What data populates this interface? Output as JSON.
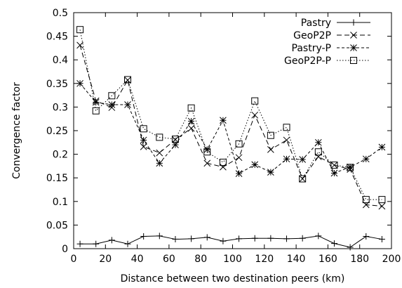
{
  "chart_data": {
    "type": "line",
    "xlabel": "Distance between two destination peers (km)",
    "ylabel": "Convergence factor",
    "xlim": [
      0,
      200
    ],
    "ylim": [
      0,
      0.5
    ],
    "xticks": [
      "0",
      "20",
      "40",
      "60",
      "80",
      "100",
      "120",
      "140",
      "160",
      "180",
      "200"
    ],
    "yticks": [
      "0",
      "0.05",
      "0.1",
      "0.15",
      "0.2",
      "0.25",
      "0.3",
      "0.35",
      "0.4",
      "0.45",
      "0.5"
    ],
    "grid": false,
    "legend_position": "top-right",
    "x": [
      4,
      14,
      24,
      34,
      44,
      54,
      64,
      74,
      84,
      94,
      104,
      114,
      124,
      134,
      144,
      154,
      164,
      174,
      184,
      194
    ],
    "series": [
      {
        "name": "Pastry",
        "marker": "plus",
        "dash": "solid",
        "values": [
          0.01,
          0.01,
          0.018,
          0.01,
          0.026,
          0.027,
          0.02,
          0.021,
          0.024,
          0.016,
          0.021,
          0.022,
          0.022,
          0.021,
          0.022,
          0.027,
          0.011,
          0.003,
          0.026,
          0.02
        ]
      },
      {
        "name": "GeoP2P",
        "marker": "x",
        "dash": "dashed",
        "values": [
          0.431,
          0.313,
          0.299,
          0.357,
          0.216,
          0.203,
          0.231,
          0.255,
          0.181,
          0.173,
          0.193,
          0.283,
          0.21,
          0.23,
          0.148,
          0.195,
          0.177,
          0.168,
          0.093,
          0.09
        ]
      },
      {
        "name": "Pastry-P",
        "marker": "star",
        "dash": "small-dash",
        "values": [
          0.35,
          0.31,
          0.305,
          0.305,
          0.23,
          0.181,
          0.22,
          0.27,
          0.21,
          0.272,
          0.159,
          0.178,
          0.162,
          0.19,
          0.189,
          0.225,
          0.16,
          0.173,
          0.19,
          0.215
        ]
      },
      {
        "name": "GeoP2P-P",
        "marker": "square",
        "dash": "dotted",
        "values": [
          0.464,
          0.292,
          0.324,
          0.358,
          0.254,
          0.236,
          0.232,
          0.298,
          0.205,
          0.183,
          0.222,
          0.313,
          0.24,
          0.257,
          0.148,
          0.205,
          0.177,
          0.172,
          0.104,
          0.104
        ]
      }
    ]
  }
}
